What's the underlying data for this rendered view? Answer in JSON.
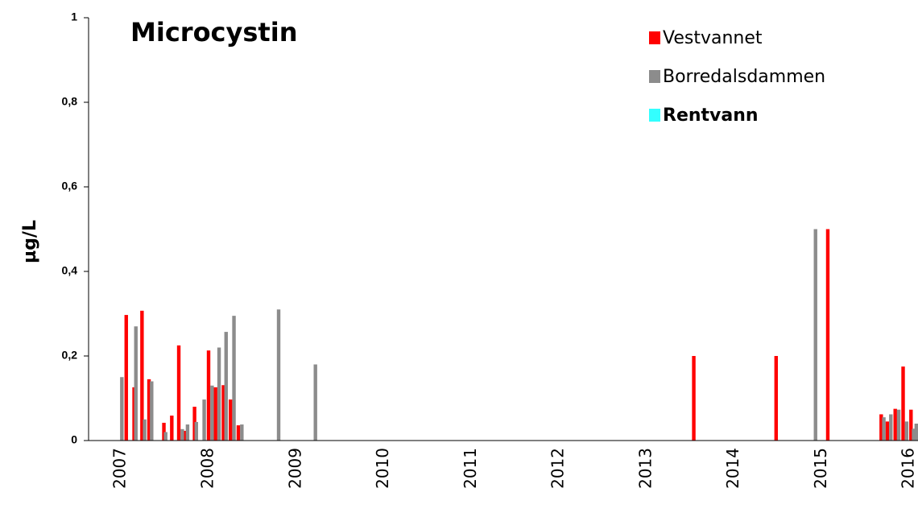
{
  "chart_data": {
    "type": "bar",
    "title": "Microcystin",
    "y_label": "µg/L",
    "xlim": [
      2006.63,
      2016.1
    ],
    "xticks": [
      2007,
      2008,
      2009,
      2010,
      2011,
      2012,
      2013,
      2014,
      2015,
      2016
    ],
    "ylim": [
      0,
      1
    ],
    "yticks": [
      0,
      {
        "value": 0.2,
        "label": "0,2"
      },
      {
        "value": 0.4,
        "label": "0,4"
      },
      {
        "value": 0.6,
        "label": "0,6"
      },
      {
        "value": 0.8,
        "label": "0,8"
      },
      1
    ],
    "grid": false,
    "legend": "top-right",
    "series": [
      {
        "name": "Vestvannet",
        "color": "#ff0000",
        "x": [
          2007.06,
          2007.15,
          2007.24,
          2007.32,
          2007.49,
          2007.58,
          2007.66,
          2007.73,
          2007.84,
          2008.0,
          2008.08,
          2008.17,
          2008.25,
          2008.34,
          2013.54,
          2014.48,
          2015.07,
          2015.68,
          2015.75,
          2015.84,
          2015.93,
          2016.02
        ],
        "values": [
          0.297,
          0.126,
          0.307,
          0.145,
          0.042,
          0.059,
          0.225,
          0.023,
          0.08,
          0.213,
          0.126,
          0.131,
          0.097,
          0.036,
          0.2,
          0.2,
          0.5,
          0.062,
          0.045,
          0.075,
          0.175,
          0.073
        ]
      },
      {
        "name": "Borredalsdammen",
        "color": "#8c8c8c",
        "x": [
          2007.01,
          2007.17,
          2007.27,
          2007.35,
          2007.51,
          2007.7,
          2007.76,
          2007.86,
          2007.95,
          2008.04,
          2008.12,
          2008.2,
          2008.29,
          2008.38,
          2008.8,
          2009.22,
          2014.93,
          2015.71,
          2015.79,
          2015.88,
          2015.97,
          2016.05,
          2016.08
        ],
        "values": [
          0.15,
          0.27,
          0.05,
          0.14,
          0.02,
          0.027,
          0.038,
          0.044,
          0.097,
          0.13,
          0.22,
          0.257,
          0.295,
          0.038,
          0.31,
          0.18,
          0.5,
          0.055,
          0.062,
          0.073,
          0.045,
          0.028,
          0.04
        ]
      },
      {
        "name": "Rentvann",
        "color": "#33ffff",
        "x": [],
        "values": []
      }
    ]
  }
}
